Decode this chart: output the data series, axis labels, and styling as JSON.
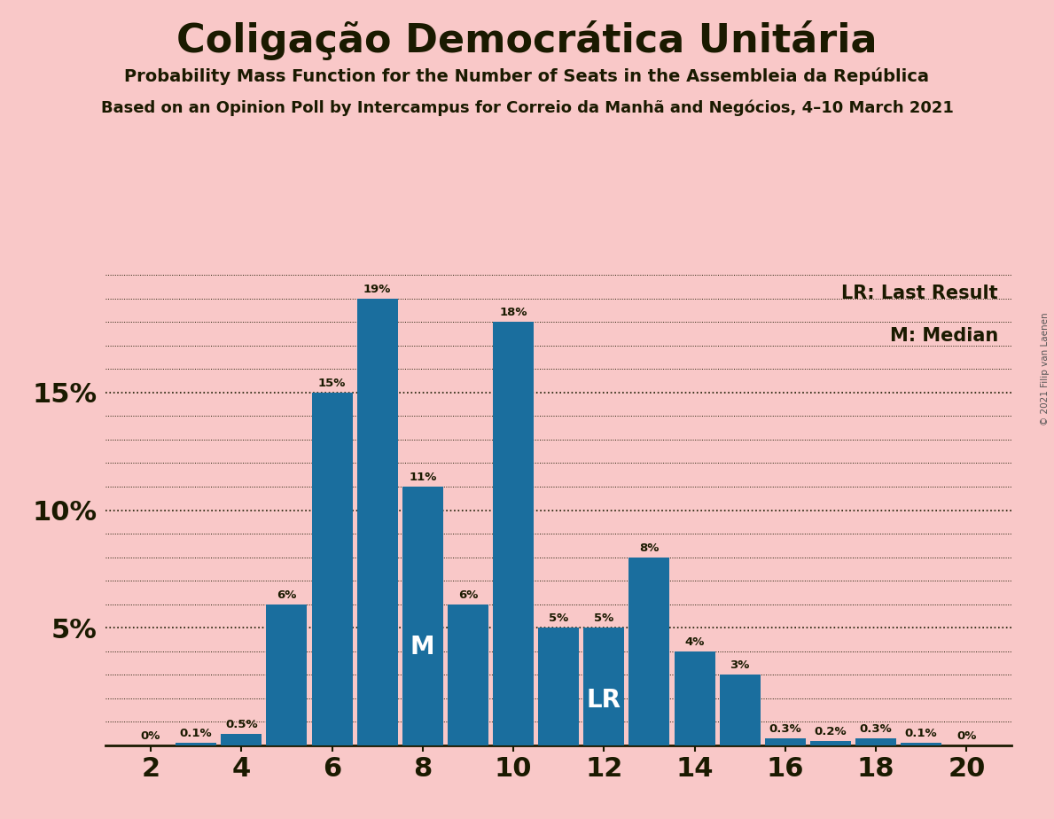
{
  "title": "Coligação Democrática Unitária",
  "subtitle1": "Probability Mass Function for the Number of Seats in the Assembleia da República",
  "subtitle2": "Based on an Opinion Poll by Intercampus for Correio da Manhã and Negócios, 4–10 March 2021",
  "copyright": "© 2021 Filip van Laenen",
  "seats": [
    2,
    3,
    4,
    5,
    6,
    7,
    8,
    9,
    10,
    11,
    12,
    13,
    14,
    15,
    16,
    17,
    18,
    19,
    20
  ],
  "probabilities": [
    0.0,
    0.001,
    0.005,
    0.06,
    0.15,
    0.19,
    0.11,
    0.06,
    0.18,
    0.05,
    0.05,
    0.08,
    0.04,
    0.03,
    0.003,
    0.002,
    0.003,
    0.001,
    0.0
  ],
  "bar_labels": [
    "0%",
    "0.1%",
    "0.5%",
    "6%",
    "15%",
    "19%",
    "11%",
    "6%",
    "18%",
    "5%",
    "5%",
    "8%",
    "4%",
    "3%",
    "0.3%",
    "0.2%",
    "0.3%",
    "0.1%",
    "0%"
  ],
  "bar_color": "#1a6e9e",
  "background_color": "#f9c8c8",
  "text_color": "#1a1a00",
  "median_seat": 8,
  "last_result_seat": 12,
  "legend_lr": "LR: Last Result",
  "legend_m": "M: Median",
  "ylim": [
    0,
    0.202
  ],
  "yticks": [
    0.05,
    0.1,
    0.15
  ],
  "ytick_labels": [
    "5%",
    "10%",
    "15%"
  ],
  "xticks": [
    2,
    4,
    6,
    8,
    10,
    12,
    14,
    16,
    18,
    20
  ],
  "xlim": [
    1.0,
    21.0
  ]
}
